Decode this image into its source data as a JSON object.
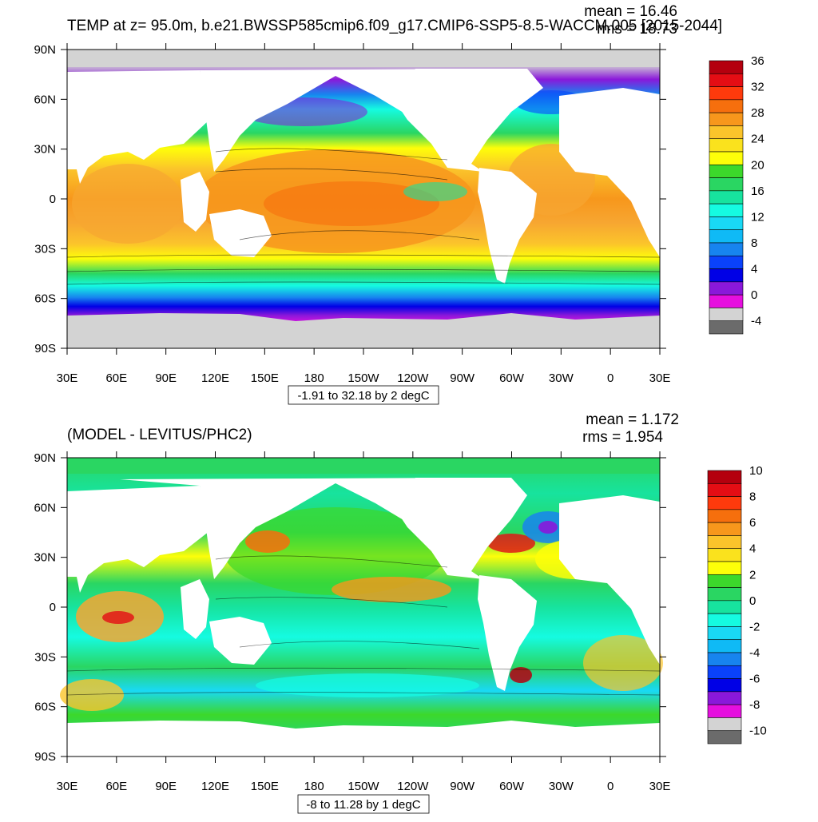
{
  "panels": [
    {
      "title": "TEMP at z=  95.0m, b.e21.BWSSP585cmip6.f09_g17.CMIP6-SSP5-8.5-WACCM.005 [2015-2044]",
      "mean_label": "mean = 16.46",
      "rms_label": "rms = 18.73",
      "info_box": "-1.91 to 32.18 by 2 degC",
      "colorbar_labels": [
        "36",
        "32",
        "28",
        "24",
        "20",
        "16",
        "12",
        "8",
        "4",
        "0",
        "-4"
      ],
      "colorbar_colors": [
        "#b4000e",
        "#e40d14",
        "#fe3a0c",
        "#f66f0d",
        "#f7971c",
        "#fbc42b",
        "#fae21d",
        "#fefe09",
        "#3cd82b",
        "#2ad662",
        "#17e39e",
        "#15fbe1",
        "#19d9f5",
        "#0fbaf6",
        "#1784ef",
        "#0a42fb",
        "#0000e6",
        "#8a18da",
        "#e60fdf",
        "#d3d3d3",
        "#6b6b6b"
      ]
    },
    {
      "title": "(MODEL - LEVITUS/PHC2)",
      "mean_label": "mean = 1.172",
      "rms_label": "rms = 1.954",
      "info_box": "-8 to 11.28 by 1 degC",
      "colorbar_labels": [
        "10",
        "8",
        "6",
        "4",
        "2",
        "0",
        "-2",
        "-4",
        "-6",
        "-8",
        "-10"
      ],
      "colorbar_colors": [
        "#b4000e",
        "#e40d14",
        "#fe3a0c",
        "#f66f0d",
        "#f7971c",
        "#fbc42b",
        "#fae21d",
        "#fefe09",
        "#3cd82b",
        "#2ad662",
        "#17e39e",
        "#15fbe1",
        "#19d9f5",
        "#0fbaf6",
        "#1784ef",
        "#0a42fb",
        "#0000e6",
        "#8a18da",
        "#e60fdf",
        "#d3d3d3",
        "#6b6b6b"
      ]
    }
  ],
  "lat_labels": [
    "90N",
    "60N",
    "30N",
    "0",
    "30S",
    "60S",
    "90S"
  ],
  "lon_labels": [
    "30E",
    "60E",
    "90E",
    "120E",
    "150E",
    "180",
    "150W",
    "120W",
    "90W",
    "60W",
    "30W",
    "0",
    "30E"
  ]
}
